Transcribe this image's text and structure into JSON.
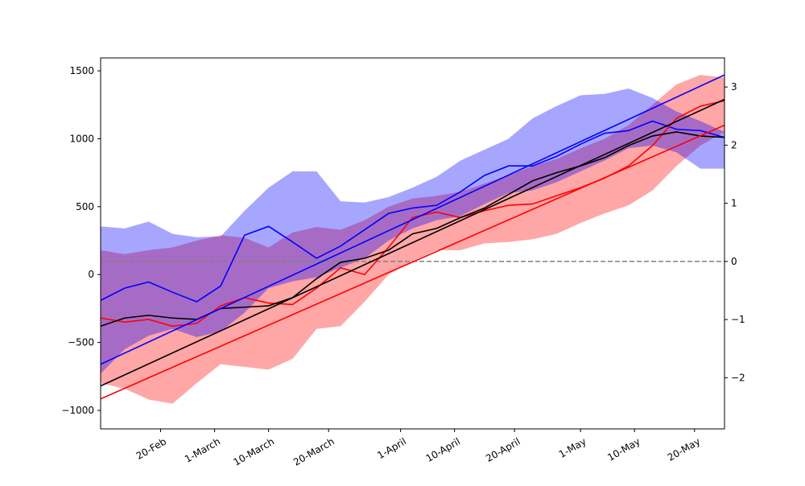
{
  "chart_data": {
    "type": "line",
    "x": [
      0,
      4,
      8,
      12,
      16,
      20,
      24,
      28,
      32,
      36,
      40,
      44,
      48,
      52,
      56,
      60,
      64,
      68,
      72,
      76,
      80,
      84,
      88,
      92,
      96,
      100,
      104
    ],
    "xlim": [
      0,
      104
    ],
    "xticks": [
      {
        "value": 10,
        "label": "20-Feb"
      },
      {
        "value": 19,
        "label": "1-March"
      },
      {
        "value": 28,
        "label": "10-March"
      },
      {
        "value": 38,
        "label": "20-March"
      },
      {
        "value": 50,
        "label": "1-April"
      },
      {
        "value": 59,
        "label": "10-April"
      },
      {
        "value": 69,
        "label": "20-April"
      },
      {
        "value": 80,
        "label": "1-May"
      },
      {
        "value": 89,
        "label": "10-May"
      },
      {
        "value": 99,
        "label": "20-May"
      }
    ],
    "ylim": [
      -1136,
      1595
    ],
    "yticks": [
      {
        "value": -1000,
        "label": "−1000"
      },
      {
        "value": -500,
        "label": "−500"
      },
      0,
      500,
      1000,
      1500
    ],
    "y2lim": [
      -2.88,
      3.5
    ],
    "y2ticks": [
      {
        "value": -2,
        "label": "−2"
      },
      {
        "value": -1,
        "label": "−1"
      },
      0,
      1,
      2,
      3
    ],
    "bands": [
      {
        "color": "#ff0000",
        "opacity": 0.35,
        "lower": [
          -800,
          -840,
          -920,
          -950,
          -800,
          -660,
          -680,
          -700,
          -620,
          -400,
          -380,
          -200,
          0,
          100,
          180,
          180,
          230,
          240,
          260,
          300,
          380,
          450,
          510,
          620,
          800,
          950,
          1050
        ],
        "upper": [
          180,
          150,
          180,
          200,
          250,
          290,
          270,
          200,
          310,
          350,
          330,
          400,
          500,
          560,
          580,
          610,
          670,
          730,
          800,
          850,
          930,
          1000,
          1100,
          1250,
          1400,
          1470,
          1450
        ]
      },
      {
        "color": "#0000ff",
        "opacity": 0.35,
        "lower": [
          -730,
          -550,
          -450,
          -400,
          -460,
          -420,
          -280,
          -100,
          -50,
          -20,
          50,
          120,
          250,
          340,
          400,
          430,
          520,
          600,
          620,
          680,
          760,
          840,
          930,
          950,
          900,
          780,
          780
        ],
        "upper": [
          355,
          340,
          390,
          300,
          275,
          280,
          470,
          640,
          760,
          760,
          540,
          530,
          570,
          640,
          720,
          840,
          920,
          1000,
          1150,
          1240,
          1320,
          1330,
          1370,
          1300,
          1200,
          1130,
          1050
        ]
      }
    ],
    "lines": [
      {
        "color": "#0000ff",
        "values": [
          -190,
          -100,
          -55,
          -130,
          -200,
          -85,
          290,
          355,
          240,
          120,
          210,
          330,
          450,
          490,
          510,
          610,
          730,
          800,
          800,
          870,
          960,
          1040,
          1060,
          1130,
          1070,
          1060,
          1010
        ]
      },
      {
        "color": "#ff0000",
        "values": [
          -320,
          -350,
          -330,
          -380,
          -360,
          -230,
          -170,
          -210,
          -220,
          -100,
          50,
          0,
          200,
          420,
          460,
          420,
          470,
          510,
          520,
          580,
          640,
          710,
          800,
          950,
          1150,
          1240,
          1280
        ]
      },
      {
        "color": "#000000",
        "values": [
          -380,
          -320,
          -300,
          -320,
          -330,
          -250,
          -240,
          -230,
          -170,
          -30,
          90,
          120,
          180,
          300,
          340,
          420,
          490,
          590,
          690,
          750,
          800,
          860,
          950,
          1020,
          1050,
          1020,
          1010
        ]
      },
      {
        "color": "#0000ff",
        "x": [
          0,
          104
        ],
        "values": [
          -660,
          1470
        ]
      },
      {
        "color": "#ff0000",
        "x": [
          0,
          104
        ],
        "values": [
          -915,
          1100
        ]
      },
      {
        "color": "#000000",
        "x": [
          0,
          104
        ],
        "values": [
          -820,
          1290
        ]
      }
    ],
    "hlines": [
      {
        "axis": "y2",
        "value": 0,
        "color": "#808080",
        "dashed": true
      }
    ]
  }
}
